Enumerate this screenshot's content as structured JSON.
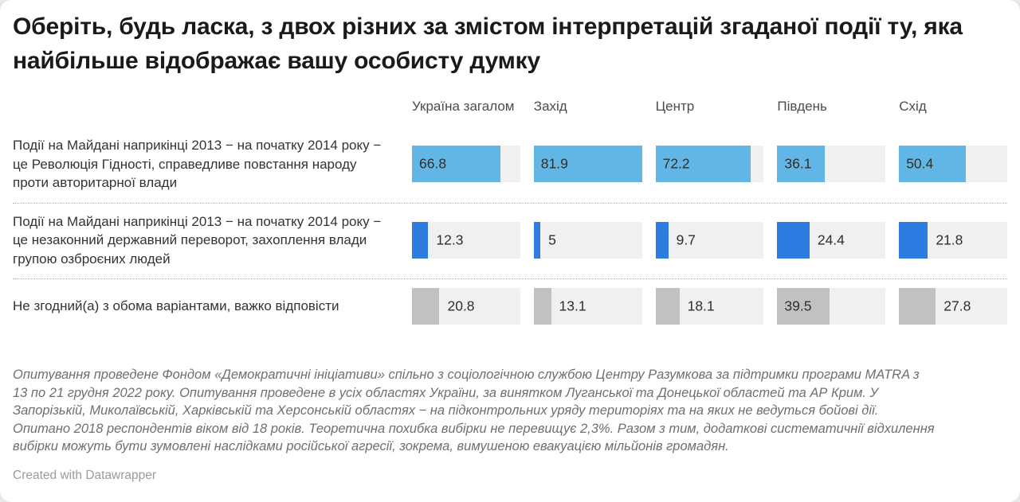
{
  "title": "Оберіть, будь ласка, з двох різних за змістом інтерпретацій згаданої події ту, яка найбільше відображає вашу особисту думку",
  "chart_data": {
    "type": "bar",
    "title": "Оберіть, будь ласка, з двох різних за змістом інтерпретацій згаданої події ту, яка найбільше відображає вашу особисту думку",
    "unit": "%",
    "scale_max": 81.9,
    "legend_position": "none",
    "grid": false,
    "categories": [
      "Україна загалом",
      "Захід",
      "Центр",
      "Південь",
      "Схід"
    ],
    "series": [
      {
        "name": "Події на Майдані наприкінці 2013 − на початку 2014 року − це Революція Гідності, справедливе повстання народу проти авторитарної влади",
        "values": [
          66.8,
          81.9,
          72.2,
          36.1,
          50.4
        ],
        "color": "#62b6e6"
      },
      {
        "name": "Події на Майдані наприкінці 2013 − на початку 2014 року − це незаконний державний переворот, захоплення влади групою озброєних людей",
        "values": [
          12.3,
          5,
          9.7,
          24.4,
          21.8
        ],
        "color": "#2f7ce0"
      },
      {
        "name": "Не згодний(а) з обома варіантами, важко відповісти",
        "values": [
          20.8,
          13.1,
          18.1,
          39.5,
          27.8
        ],
        "color": "#c1c1c1"
      }
    ]
  },
  "footer_notes": "Опитування проведене Фондом «Демократичні ініціативи» спільно з соціологічною службою Центру Разумкова за підтримки програми MATRA з 13 по 21 грудня 2022 року. Опитування проведене в усіх областях України, за винятком Луганської та Донецької областей та АР Крим. У Запорізькій, Миколаївській, Харківській та Херсонській областях − на підконтрольних уряду територіях та на яких не ведуться бойові дії. Опитано 2018 респондентів віком від 18 років. Теоретична похибка вибірки не перевищує 2,3%. Разом з тим, додаткові систематичнії відхилення вибірки можуть бути зумовлені наслідками російської агресії, зокрема, вимушеною евакуацією мільйонів громадян.",
  "attribution": "Created with Datawrapper",
  "colors": {
    "bar_row1": "#62b6e6",
    "bar_row2": "#2f7ce0",
    "bar_row3": "#c1c1c1",
    "bar_track": "#f0f0f0",
    "title_text": "#1a1a1a",
    "label_text": "#333333",
    "notes_text": "#6f6f6f",
    "attribution_text": "#9b9b9b"
  }
}
